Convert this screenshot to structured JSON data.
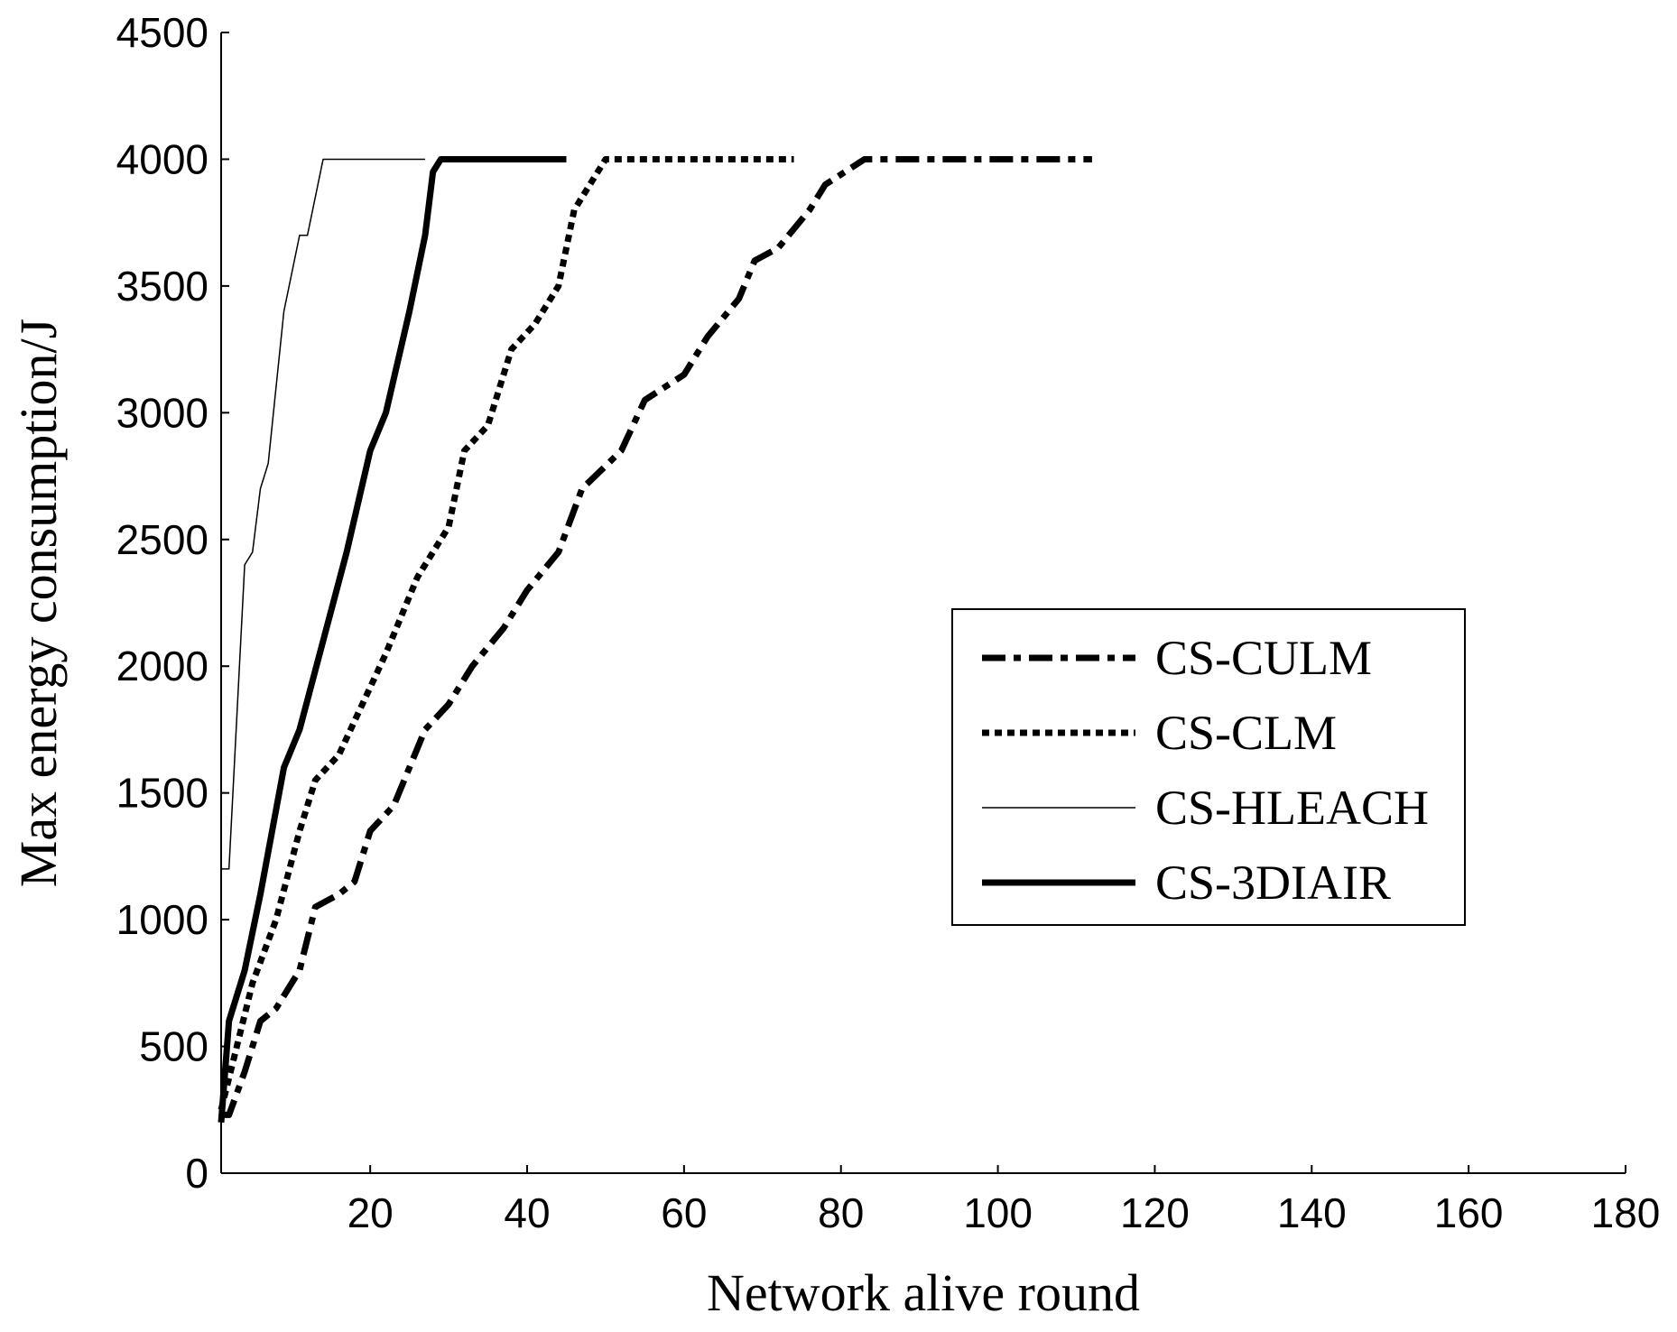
{
  "chart_data": {
    "type": "line",
    "xlabel": "Network alive round",
    "ylabel": "Max energy consumption/J",
    "xlim": [
      1,
      180
    ],
    "ylim": [
      0,
      4500
    ],
    "xticks": [
      20,
      40,
      60,
      80,
      100,
      120,
      140,
      160,
      180
    ],
    "yticks": [
      0,
      500,
      1000,
      1500,
      2000,
      2500,
      3000,
      3500,
      4000,
      4500
    ],
    "grid": false,
    "legend": "right",
    "series": [
      {
        "name": "CS-CULM",
        "color": "#000000",
        "linestyle": "dashdot",
        "linewidth": 7,
        "x": [
          1,
          2,
          4,
          6,
          8,
          11,
          13,
          16,
          18,
          20,
          23,
          25,
          27,
          30,
          33,
          37,
          40,
          44,
          47,
          52,
          55,
          60,
          63,
          67,
          69,
          72,
          76,
          78,
          83,
          112
        ],
        "values": [
          230,
          230,
          400,
          600,
          650,
          800,
          1050,
          1100,
          1150,
          1350,
          1450,
          1600,
          1750,
          1850,
          2000,
          2150,
          2300,
          2450,
          2700,
          2850,
          3050,
          3150,
          3300,
          3450,
          3600,
          3650,
          3800,
          3900,
          4000,
          4000
        ]
      },
      {
        "name": "CS-CLM",
        "color": "#000000",
        "linestyle": "dotted",
        "linewidth": 7,
        "x": [
          1,
          3,
          5,
          8,
          11,
          13,
          16,
          19,
          22,
          26,
          30,
          32,
          35,
          38,
          41,
          44,
          46,
          48,
          50,
          74
        ],
        "values": [
          250,
          500,
          750,
          1000,
          1350,
          1550,
          1650,
          1850,
          2050,
          2350,
          2550,
          2850,
          2950,
          3250,
          3350,
          3500,
          3800,
          3900,
          4000,
          4000
        ]
      },
      {
        "name": "CS-HLEACH",
        "color": "#000000",
        "linestyle": "solid",
        "linewidth": 1.5,
        "x": [
          1,
          2,
          4,
          5,
          6,
          7,
          9,
          11,
          12,
          14,
          27
        ],
        "values": [
          1200,
          1200,
          2400,
          2450,
          2700,
          2800,
          3400,
          3700,
          3700,
          4000,
          4000
        ]
      },
      {
        "name": "CS-3DIAIR",
        "color": "#000000",
        "linestyle": "solid",
        "linewidth": 7,
        "x": [
          1,
          2,
          4,
          6,
          9,
          11,
          14,
          17,
          20,
          22,
          25,
          27,
          28,
          29,
          45
        ],
        "values": [
          200,
          600,
          800,
          1100,
          1600,
          1750,
          2100,
          2450,
          2850,
          3000,
          3400,
          3700,
          3950,
          4000,
          4000
        ]
      }
    ]
  }
}
